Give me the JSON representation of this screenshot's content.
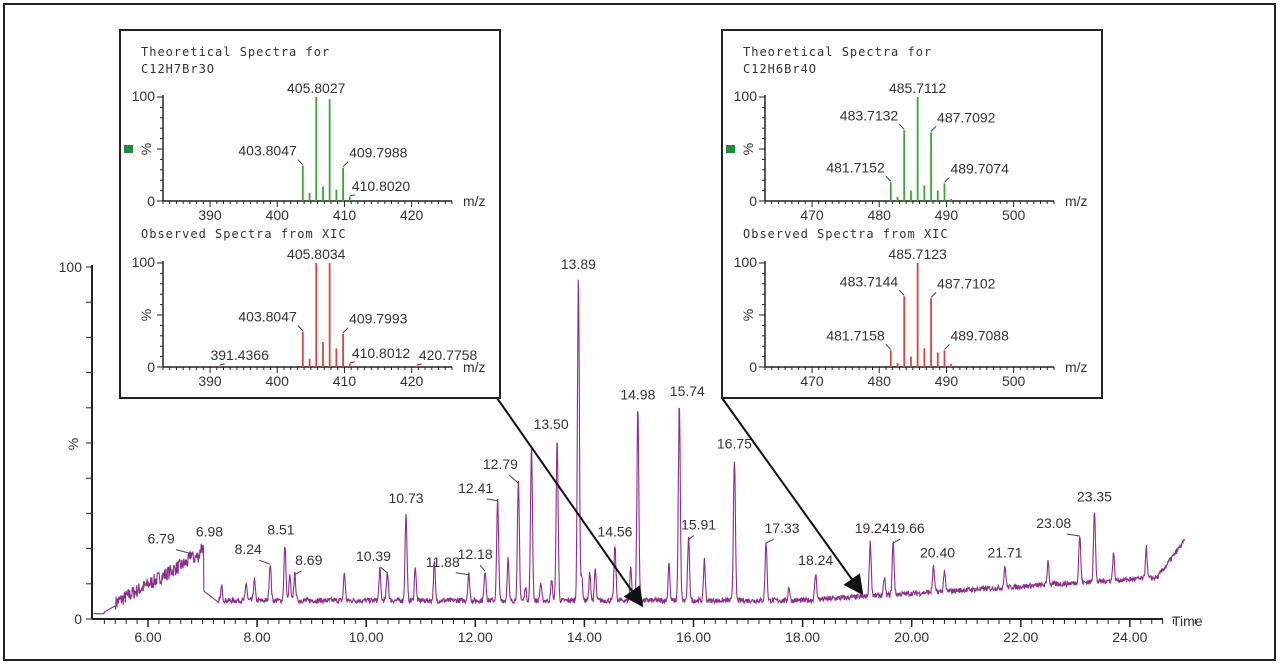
{
  "chart_data": [
    {
      "type": "line",
      "title": "",
      "xlabel": "Time",
      "ylabel": "%",
      "xlim": [
        4.97,
        25.5
      ],
      "ylim": [
        0,
        100
      ],
      "xticks": [
        "6.00",
        "8.00",
        "10.00",
        "12.00",
        "14.00",
        "16.00",
        "18.00",
        "20.00",
        "22.00",
        "24.00"
      ],
      "xtick_values": [
        6,
        8,
        10,
        12,
        14,
        16,
        18,
        20,
        22,
        24
      ],
      "yticks": [
        "0",
        "100"
      ],
      "color": "#8b2f8b",
      "peaks": [
        {
          "rt": 6.79,
          "label": "6.79",
          "height": 18
        },
        {
          "rt": 6.98,
          "label": "6.98",
          "height": 20
        },
        {
          "rt": 8.24,
          "label": "8.24",
          "height": 15
        },
        {
          "rt": 8.51,
          "label": "8.51",
          "height": 20
        },
        {
          "rt": 8.69,
          "label": "8.69",
          "height": 12
        },
        {
          "rt": 10.39,
          "label": "10.39",
          "height": 12.5
        },
        {
          "rt": 10.73,
          "label": "10.73",
          "height": 29
        },
        {
          "rt": 11.88,
          "label": "11.88",
          "height": 12
        },
        {
          "rt": 12.18,
          "label": "12.18",
          "height": 13
        },
        {
          "rt": 12.41,
          "label": "12.41",
          "height": 33
        },
        {
          "rt": 12.79,
          "label": "12.79",
          "height": 38
        },
        {
          "rt": 13.03,
          "label": "",
          "height": 48
        },
        {
          "rt": 13.5,
          "label": "13.50",
          "height": 50
        },
        {
          "rt": 13.89,
          "label": "13.89",
          "height": 96
        },
        {
          "rt": 14.56,
          "label": "14.56",
          "height": 20
        },
        {
          "rt": 14.98,
          "label": "14.98",
          "height": 59
        },
        {
          "rt": 15.74,
          "label": "15.74",
          "height": 60
        },
        {
          "rt": 15.91,
          "label": "15.91",
          "height": 22
        },
        {
          "rt": 16.75,
          "label": "16.75",
          "height": 45
        },
        {
          "rt": 17.33,
          "label": "17.33",
          "height": 21
        },
        {
          "rt": 18.24,
          "label": "18.24",
          "height": 12
        },
        {
          "rt": 19.24,
          "label": "19.24",
          "height": 21
        },
        {
          "rt": 19.66,
          "label": "19.66",
          "height": 21
        },
        {
          "rt": 20.4,
          "label": "20.40",
          "height": 14
        },
        {
          "rt": 21.71,
          "label": "21.71",
          "height": 14
        },
        {
          "rt": 23.08,
          "label": "23.08",
          "height": 23
        },
        {
          "rt": 23.35,
          "label": "23.35",
          "height": 30
        }
      ]
    },
    {
      "type": "bar",
      "title": "Theoretical Spectra for C12H7Br3O",
      "xlabel": "m/z",
      "ylabel": "%",
      "color": "#3aa53a",
      "xlim": [
        383,
        426
      ],
      "ylim": [
        0,
        100
      ],
      "xticks": [
        "390",
        "400",
        "410",
        "420"
      ],
      "xtick_values": [
        390,
        400,
        410,
        420
      ],
      "yticks": [
        "0",
        "100"
      ],
      "x": [
        403.8047,
        404.81,
        405.8027,
        406.81,
        407.8,
        408.8,
        409.7988,
        410.802
      ],
      "values": [
        34,
        8,
        100,
        14,
        98,
        11,
        32,
        4
      ],
      "labels": [
        "403.8047",
        "",
        "405.8027",
        "",
        "",
        "",
        "409.7988",
        "410.8020"
      ]
    },
    {
      "type": "bar",
      "title": "Observed Spectra from XIC",
      "xlabel": "m/z",
      "ylabel": "%",
      "color": "#d94545",
      "xlim": [
        383,
        426
      ],
      "ylim": [
        0,
        100
      ],
      "xticks": [
        "390",
        "400",
        "410",
        "420"
      ],
      "xtick_values": [
        390,
        400,
        410,
        420
      ],
      "yticks": [
        "0",
        "100"
      ],
      "x": [
        391.4366,
        403.8047,
        404.81,
        405.8034,
        406.81,
        407.8,
        408.8,
        409.7993,
        410.8012,
        420.7758
      ],
      "values": [
        1,
        34,
        8,
        100,
        24,
        100,
        18,
        32,
        3,
        1
      ],
      "labels": [
        "391.4366",
        "403.8047",
        "",
        "405.8034",
        "",
        "",
        "",
        "409.7993",
        "410.8012",
        "420.7758"
      ]
    },
    {
      "type": "bar",
      "title": "Theoretical Spectra for C12H6Br4O",
      "xlabel": "m/z",
      "ylabel": "%",
      "color": "#3aa53a",
      "xlim": [
        463,
        506
      ],
      "ylim": [
        0,
        100
      ],
      "xticks": [
        "470",
        "480",
        "490",
        "500"
      ],
      "xtick_values": [
        470,
        480,
        490,
        500
      ],
      "yticks": [
        "0",
        "100"
      ],
      "x": [
        481.7152,
        482.72,
        483.7132,
        484.72,
        485.7112,
        486.71,
        487.7092,
        488.71,
        489.7074,
        490.71
      ],
      "values": [
        18,
        4,
        68,
        10,
        100,
        15,
        66,
        10,
        17,
        2
      ],
      "labels": [
        "481.7152",
        "",
        "483.7132",
        "",
        "485.7112",
        "",
        "487.7092",
        "",
        "489.7074",
        ""
      ]
    },
    {
      "type": "bar",
      "title": "Observed Spectra from XIC",
      "xlabel": "m/z",
      "ylabel": "%",
      "color": "#d94545",
      "xlim": [
        463,
        506
      ],
      "ylim": [
        0,
        100
      ],
      "xticks": [
        "470",
        "480",
        "490",
        "500"
      ],
      "xtick_values": [
        470,
        480,
        490,
        500
      ],
      "yticks": [
        "0",
        "100"
      ],
      "x": [
        481.7158,
        482.72,
        483.7144,
        484.72,
        485.7123,
        486.71,
        487.7102,
        488.71,
        489.7088,
        490.71
      ],
      "values": [
        16,
        4,
        68,
        10,
        100,
        18,
        66,
        14,
        16,
        3
      ],
      "labels": [
        "481.7158",
        "",
        "483.7144",
        "",
        "485.7123",
        "",
        "487.7102",
        "",
        "489.7088",
        ""
      ]
    }
  ],
  "insets": [
    {
      "title_line1": "Theoretical Spectra for",
      "title_line2": "C12H7Br3O",
      "observed_title": "Observed Spectra from XIC"
    },
    {
      "title_line1": "Theoretical Spectra for",
      "title_line2": "C12H6Br4O",
      "observed_title": "Observed Spectra from XIC"
    }
  ],
  "legend_color": "#1e8a3c"
}
